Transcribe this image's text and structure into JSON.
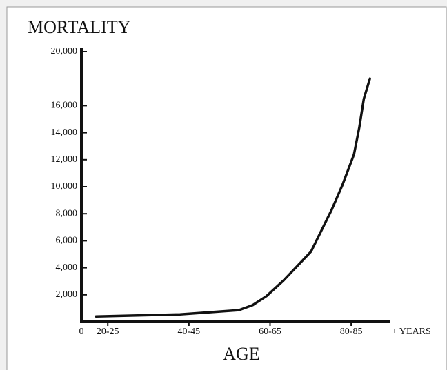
{
  "chart_data": {
    "type": "line",
    "title": "MORTALITY",
    "x_label": "AGE",
    "x_unit_label": "+ YEARS",
    "origin_label": "0",
    "x": [
      19.6,
      40.3,
      54.8,
      58.2,
      61.6,
      65.8,
      72.6,
      77.7,
      80.3,
      83.2,
      84.5,
      85.6,
      87.1
    ],
    "values": [
      400,
      550,
      860,
      1230,
      1900,
      3050,
      5200,
      8300,
      10100,
      12400,
      14400,
      16500,
      18000
    ],
    "color": "#111111",
    "xlim": [
      16,
      92
    ],
    "xticks": [
      {
        "value": 22.5,
        "label": "20-25"
      },
      {
        "value": 42.5,
        "label": "40-45"
      },
      {
        "value": 62.5,
        "label": "60-65"
      },
      {
        "value": 82.5,
        "label": "80-85"
      }
    ],
    "ylim": [
      0,
      20000
    ],
    "yticks": [
      {
        "value": 2000,
        "label": "2,000"
      },
      {
        "value": 4000,
        "label": "4,000"
      },
      {
        "value": 6000,
        "label": "6,000"
      },
      {
        "value": 8000,
        "label": "8,000"
      },
      {
        "value": 10000,
        "label": "10,000"
      },
      {
        "value": 12000,
        "label": "12,000"
      },
      {
        "value": 14000,
        "label": "14,000"
      },
      {
        "value": 16000,
        "label": "16,000"
      },
      {
        "value": 20000,
        "label": "20,000"
      }
    ]
  }
}
